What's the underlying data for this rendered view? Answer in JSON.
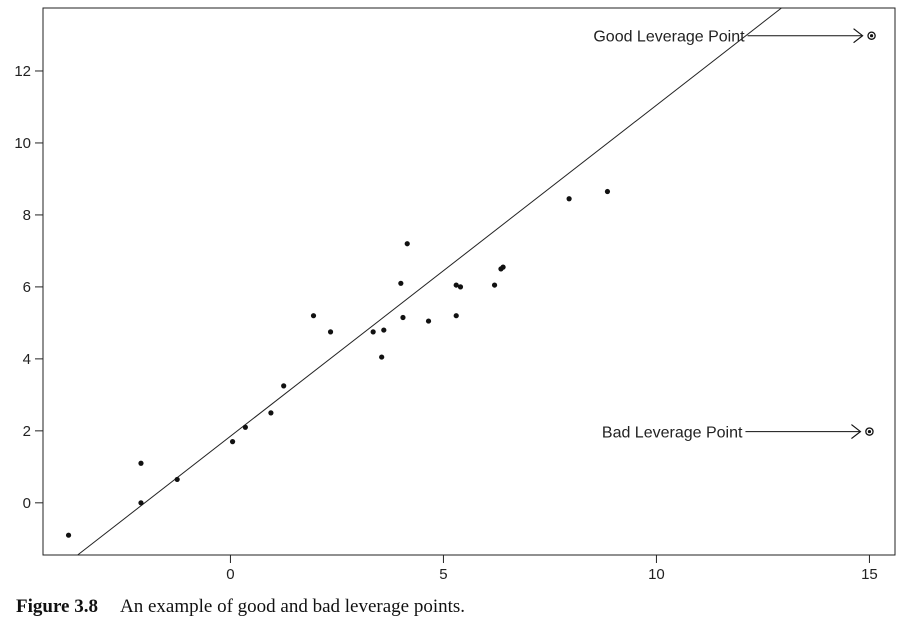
{
  "chart_data": {
    "type": "scatter",
    "title": "",
    "xlabel": "",
    "ylabel": "",
    "xlim": [
      -4.4,
      15.6
    ],
    "ylim": [
      -1.45,
      13.75
    ],
    "xticks": [
      0,
      5,
      10,
      15
    ],
    "yticks": [
      0,
      2,
      4,
      6,
      8,
      10,
      12
    ],
    "grid": false,
    "legend": "none",
    "series": [
      {
        "points": [
          {
            "x": -3.8,
            "y": -0.9
          },
          {
            "x": -2.1,
            "y": 1.1
          },
          {
            "x": -2.1,
            "y": 0.0
          },
          {
            "x": -1.25,
            "y": 0.65
          },
          {
            "x": 0.05,
            "y": 1.7
          },
          {
            "x": 0.35,
            "y": 2.1
          },
          {
            "x": 0.95,
            "y": 2.5
          },
          {
            "x": 1.25,
            "y": 3.25
          },
          {
            "x": 1.95,
            "y": 5.2
          },
          {
            "x": 2.35,
            "y": 4.75
          },
          {
            "x": 3.35,
            "y": 4.75
          },
          {
            "x": 3.55,
            "y": 4.05
          },
          {
            "x": 3.6,
            "y": 4.8
          },
          {
            "x": 4.0,
            "y": 6.1
          },
          {
            "x": 4.05,
            "y": 5.15
          },
          {
            "x": 4.15,
            "y": 7.2
          },
          {
            "x": 4.65,
            "y": 5.05
          },
          {
            "x": 5.3,
            "y": 6.05
          },
          {
            "x": 5.3,
            "y": 5.2
          },
          {
            "x": 5.4,
            "y": 6.0
          },
          {
            "x": 6.2,
            "y": 6.05
          },
          {
            "x": 6.35,
            "y": 6.5
          },
          {
            "x": 6.4,
            "y": 6.55
          },
          {
            "x": 7.95,
            "y": 8.45
          },
          {
            "x": 8.85,
            "y": 8.65
          }
        ]
      }
    ],
    "fit_line": {
      "slope": 0.92,
      "intercept": 1.85
    },
    "leverage_points": [
      {
        "x": 15.05,
        "y": 12.98,
        "label": "Good Leverage Point"
      },
      {
        "x": 15.0,
        "y": 1.98,
        "label": "Bad Leverage Point"
      }
    ]
  },
  "caption": {
    "number": "Figure 3.8",
    "text": "An example of good and bad leverage points."
  }
}
